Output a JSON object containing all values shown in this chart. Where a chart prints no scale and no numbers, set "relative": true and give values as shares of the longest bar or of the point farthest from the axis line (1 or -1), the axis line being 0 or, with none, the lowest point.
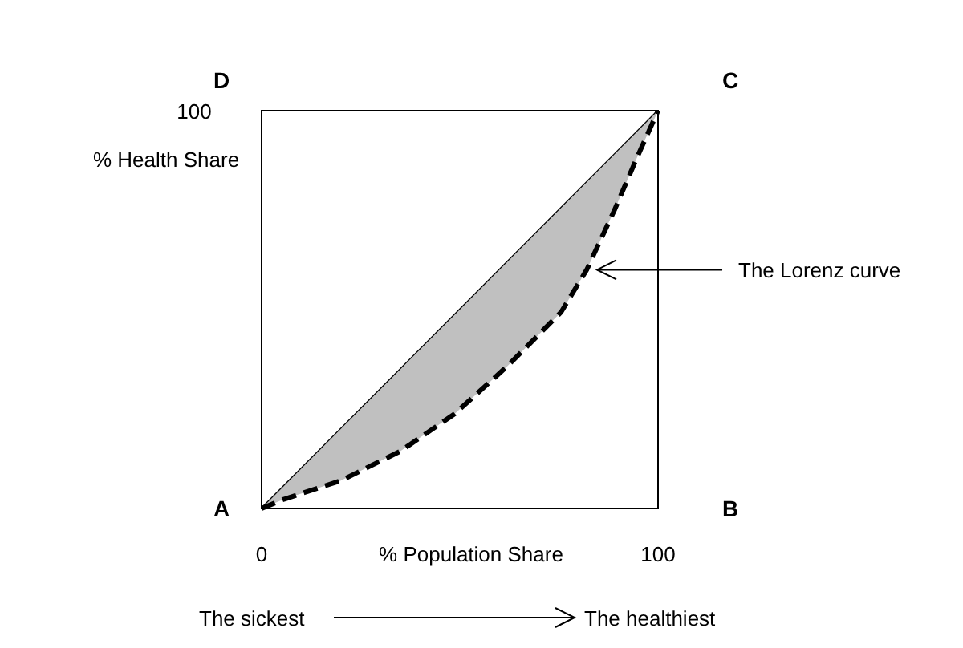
{
  "chart_data": {
    "type": "line",
    "xlabel": "% Population Share",
    "ylabel": "% Health Share",
    "xlim": [
      0,
      100
    ],
    "xticks": [
      0,
      100
    ],
    "relative": true,
    "grid": false,
    "series": [
      {
        "color": "#000000",
        "line_style": "solid",
        "x": [
          0,
          100
        ],
        "values": [
          0,
          1
        ]
      },
      {
        "color": "#000000",
        "line_style": "dashed",
        "x": [
          0,
          5.6,
          20,
          35,
          48.7,
          62,
          75.5,
          82,
          89,
          94.6,
          100
        ],
        "values": [
          0,
          0.023,
          0.07,
          0.144,
          0.238,
          0.358,
          0.493,
          0.6,
          0.75,
          0.88,
          1
        ]
      }
    ],
    "annotations": [
      "A",
      "B",
      "C",
      "D",
      "100",
      {
        "text": "The Lorenz curve",
        "x": 83,
        "y": 0.6
      },
      "The sickest",
      "The healthiest"
    ]
  }
}
